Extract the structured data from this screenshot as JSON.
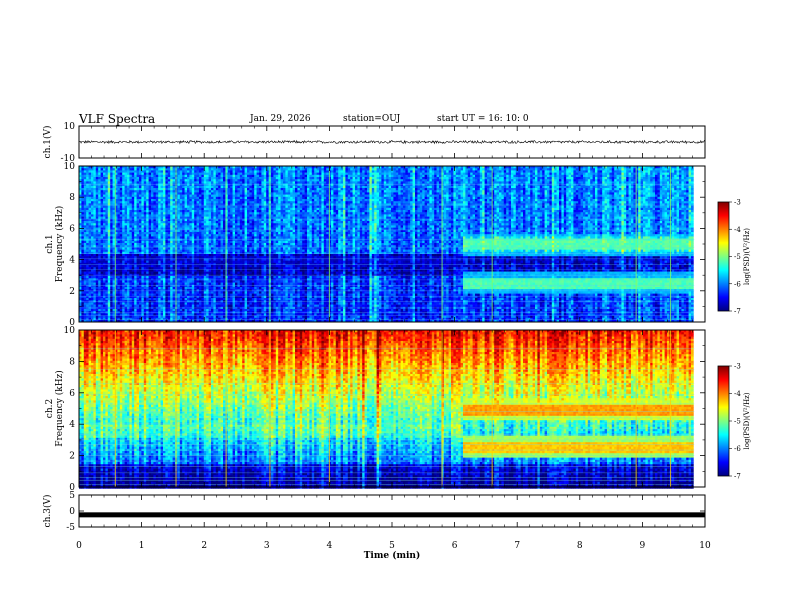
{
  "header": {
    "title": "VLF Spectra",
    "date": "Jan. 29, 2026",
    "station": "station=OUJ",
    "start_ut": "start  UT =   16: 10: 0"
  },
  "colormap": [
    "#00007f",
    "#0000ff",
    "#0080ff",
    "#00ffff",
    "#80ff80",
    "#ffff00",
    "#ff8000",
    "#ff0000",
    "#7f0000"
  ],
  "chart_data": [
    {
      "id": "ch1_waveform",
      "type": "line",
      "ylabel": "ch.1(V)",
      "ylim": [
        -10,
        10
      ],
      "y_ticks": [
        "10",
        "-10"
      ],
      "xlim": [
        0,
        10
      ],
      "series": [
        {
          "level": 0,
          "peak_amplitude": 1
        }
      ]
    },
    {
      "id": "ch1_spectrogram",
      "type": "heatmap",
      "ylabel": "ch.1\nFrequency (kHz)",
      "ylim": [
        0,
        10
      ],
      "y_ticks": [
        "0",
        "2",
        "4",
        "6",
        "8",
        "10"
      ],
      "xlim": [
        0,
        9.83
      ],
      "colorbar": {
        "label": "log(PSD)(V²/Hz)",
        "range": [
          -7,
          -3
        ],
        "ticks": [
          "-3",
          "-4",
          "-5",
          "-6",
          "-7"
        ]
      },
      "bands": [
        {
          "t_start": 0,
          "t_end": 6.1,
          "f": 3.8,
          "level": 0.05
        },
        {
          "t_start": 6.1,
          "t_end": 9.83,
          "f": 4.95,
          "level": 0.45
        },
        {
          "t_start": 6.1,
          "t_end": 9.83,
          "f": 2.5,
          "level": 0.45
        }
      ],
      "impulses_min": [
        0.58,
        1.55,
        2.35,
        3.05,
        4.0,
        5.8,
        6.6,
        8.9,
        9.45
      ]
    },
    {
      "id": "ch2_spectrogram",
      "type": "heatmap",
      "ylabel": "ch.2\nFrequency (kHz)",
      "ylim": [
        0,
        10
      ],
      "y_ticks": [
        "0",
        "2",
        "4",
        "6",
        "8",
        "10"
      ],
      "xlim": [
        0,
        9.83
      ],
      "colorbar": {
        "label": "log(PSD)(V²/Hz)",
        "range": [
          -7,
          -3
        ],
        "ticks": [
          "-3",
          "-4",
          "-5",
          "-6",
          "-7"
        ]
      },
      "bands": [
        {
          "t_start": 6.1,
          "t_end": 9.83,
          "f": 4.95,
          "level": 0.72
        },
        {
          "t_start": 6.1,
          "t_end": 9.83,
          "f": 2.55,
          "level": 0.68
        }
      ],
      "impulses_min": [
        0.58,
        1.55,
        2.35,
        3.05,
        4.0,
        5.8,
        6.6,
        8.9,
        9.45
      ]
    },
    {
      "id": "ch3_waveform",
      "type": "line",
      "ylabel": "ch.3(V)",
      "ylim": [
        -5,
        5
      ],
      "y_ticks": [
        "5",
        "0",
        "-5"
      ],
      "xlim": [
        0,
        10
      ],
      "series": [
        {
          "level": -1.2,
          "peak_amplitude": 0.2
        }
      ]
    }
  ],
  "x_axis": {
    "label": "Time (min)",
    "ticks": [
      "0",
      "1",
      "2",
      "3",
      "4",
      "5",
      "6",
      "7",
      "8",
      "9",
      "10"
    ]
  }
}
